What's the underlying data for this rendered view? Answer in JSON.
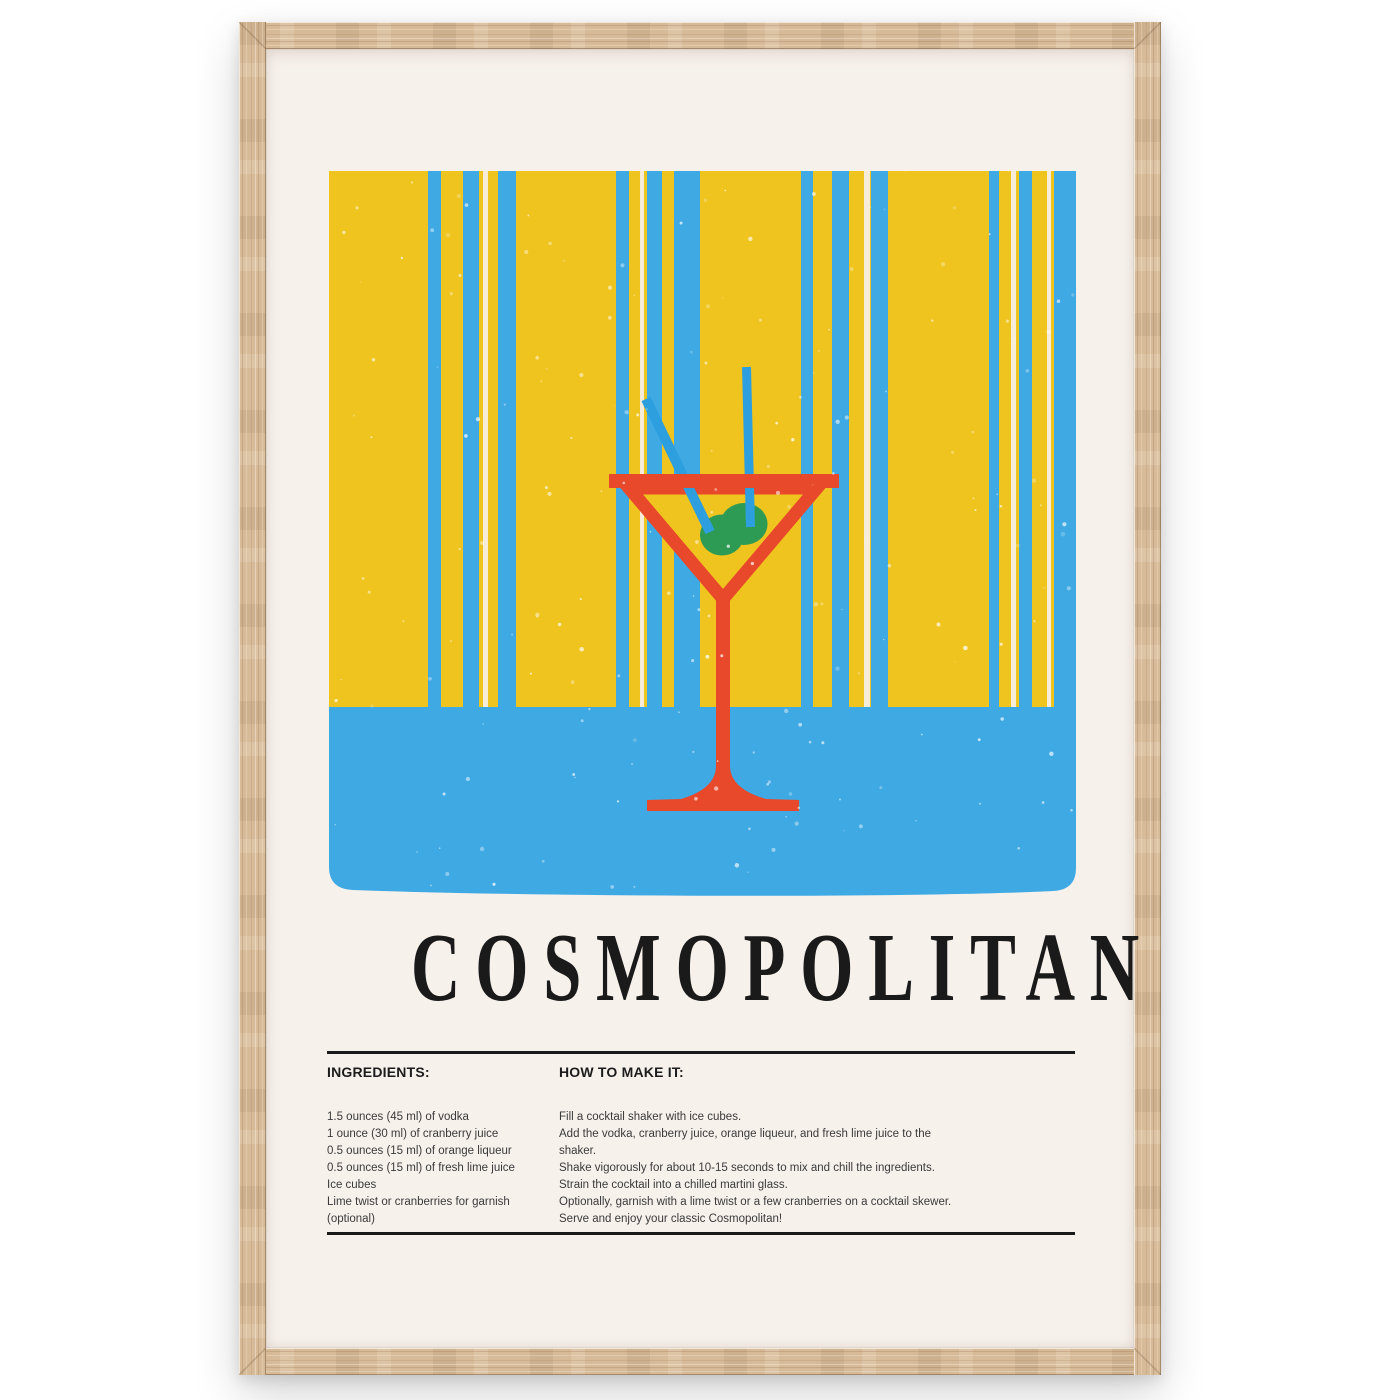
{
  "scene": {
    "background_color": "#ffffff",
    "frame_wood_color": "#d7bb98"
  },
  "poster": {
    "title": "COSMOPOLITAN",
    "ingredients": {
      "heading": "INGREDIENTS:",
      "items": [
        "1.5 ounces (45 ml) of vodka",
        "1 ounce (30 ml) of cranberry juice",
        "0.5 ounces (15 ml) of orange liqueur",
        "0.5 ounces (15 ml) of fresh lime juice",
        "Ice cubes",
        "Lime twist or cranberries for garnish (optional)"
      ]
    },
    "instructions": {
      "heading": "HOW TO MAKE IT:",
      "steps": [
        "Fill a cocktail shaker with ice cubes.",
        "Add the vodka, cranberry juice, orange liqueur, and fresh lime juice to the shaker.",
        "Shake vigorously for about 10-15 seconds to mix and chill the ingredients.",
        "Strain the cocktail into a chilled martini glass.",
        "Optionally, garnish with a lime twist or a few cranberries on a cocktail skewer.",
        "Serve and enjoy your classic Cosmopolitan!"
      ]
    },
    "artwork": {
      "elements": [
        "striped-backdrop",
        "table-surface",
        "martini-glass-icon",
        "olive-icon",
        "straw-icon"
      ],
      "colors": {
        "yellow": "#F0C41E",
        "blue": "#3FA9E4",
        "straw_blue": "#2D9FDE",
        "red": "#E8492B",
        "green": "#2E9B55",
        "paper": "#F7F1EC",
        "ink": "#1A1A1A",
        "body_text": "#3A3A3A"
      }
    }
  }
}
